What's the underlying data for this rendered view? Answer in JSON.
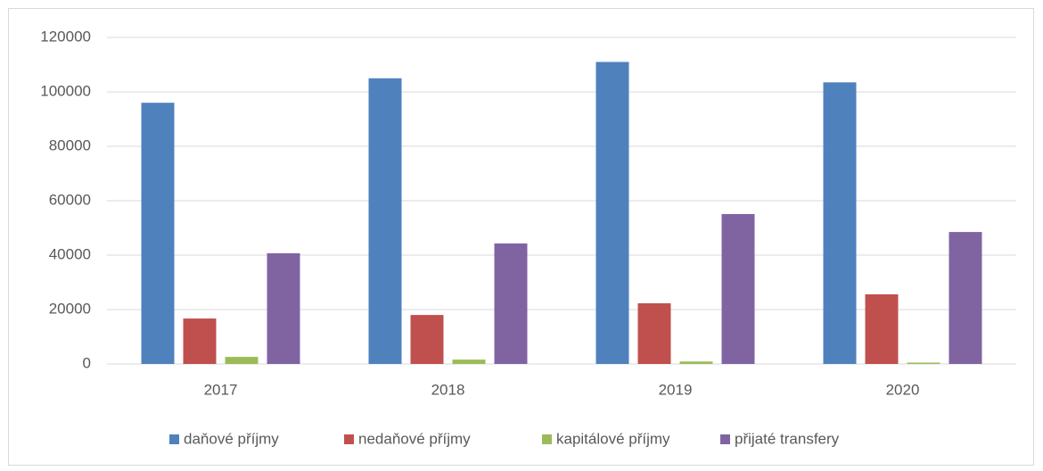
{
  "chart_data": {
    "type": "bar",
    "categories": [
      "2017",
      "2018",
      "2019",
      "2020"
    ],
    "series": [
      {
        "name": "daňové příjmy",
        "color": "#4f81bd",
        "values": [
          96000,
          105000,
          111000,
          103500
        ]
      },
      {
        "name": "nedaňové příjmy",
        "color": "#c0504d",
        "values": [
          16700,
          18000,
          22300,
          25600
        ]
      },
      {
        "name": "kapitálové příjmy",
        "color": "#9bbb59",
        "values": [
          2600,
          1600,
          900,
          500
        ]
      },
      {
        "name": "přijaté transfery",
        "color": "#8064a2",
        "values": [
          40700,
          44300,
          55100,
          48500
        ]
      }
    ],
    "ylim": [
      0,
      120000
    ],
    "yticks": [
      0,
      20000,
      40000,
      60000,
      80000,
      100000,
      120000
    ],
    "grid": true,
    "legend": "bottom"
  }
}
